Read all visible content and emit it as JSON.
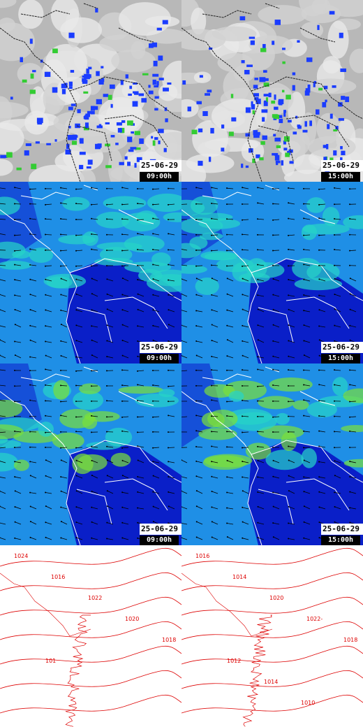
{
  "rows": [
    {
      "kind": "satellite",
      "panels": [
        {
          "date": "25-06-29",
          "time": "09:00h"
        },
        {
          "date": "25-06-29",
          "time": "15:00h"
        }
      ]
    },
    {
      "kind": "wind-low",
      "panels": [
        {
          "date": "25-06-29",
          "time": "09:00h"
        },
        {
          "date": "25-06-29",
          "time": "15:00h"
        }
      ]
    },
    {
      "kind": "wind-high",
      "panels": [
        {
          "date": "25-06-29",
          "time": "09:00h"
        },
        {
          "date": "25-06-29",
          "time": "15:00h"
        }
      ]
    },
    {
      "kind": "pressure",
      "panels": [
        {
          "isobar_labels": [
            "1024",
            "1016",
            "1022",
            "1020",
            "1018",
            "101"
          ]
        },
        {
          "isobar_labels": [
            "1016",
            "1014",
            "1020",
            "1022-",
            "1018",
            "1012",
            "1014",
            "1010"
          ]
        }
      ]
    }
  ]
}
